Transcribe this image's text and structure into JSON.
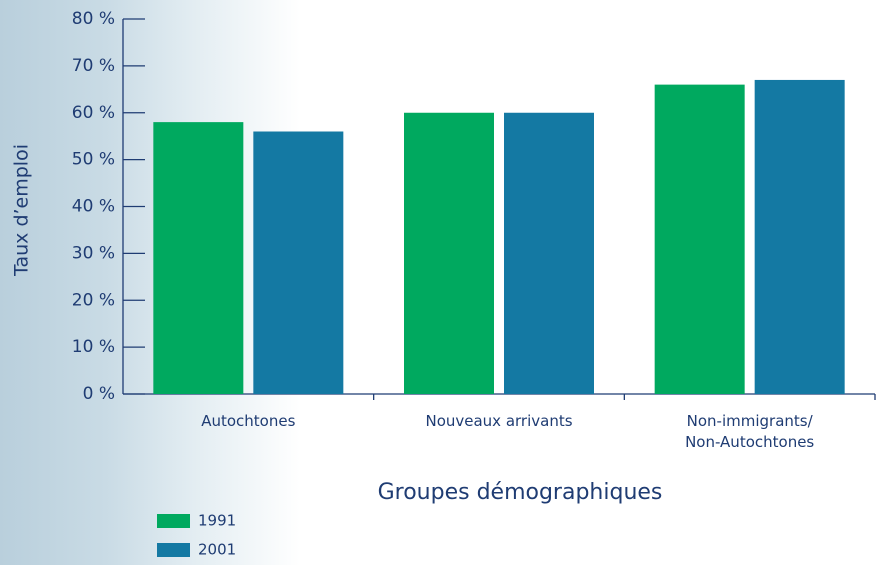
{
  "chart_data": {
    "type": "bar",
    "y_label": "Taux d’emploi",
    "x_label": "Groupes démographiques",
    "categories": [
      "Autochtones",
      "Nouveaux arrivants",
      "Non-immigrants/\nNon-Autochtones"
    ],
    "series": [
      {
        "name": "1991",
        "color": "#00a95f",
        "values": [
          58,
          60,
          66
        ]
      },
      {
        "name": "2001",
        "color": "#1479a3",
        "values": [
          56,
          60,
          67
        ]
      }
    ],
    "ylim": [
      0,
      80
    ],
    "yticks": [
      {
        "value": 0,
        "label": "0 %"
      },
      {
        "value": 10,
        "label": "10 %"
      },
      {
        "value": 20,
        "label": "20 %"
      },
      {
        "value": 30,
        "label": "30 %"
      },
      {
        "value": 40,
        "label": "40 %"
      },
      {
        "value": 50,
        "label": "50 %"
      },
      {
        "value": 60,
        "label": "60 %"
      },
      {
        "value": 70,
        "label": "70 %"
      },
      {
        "value": 80,
        "label": "80 %"
      }
    ]
  }
}
